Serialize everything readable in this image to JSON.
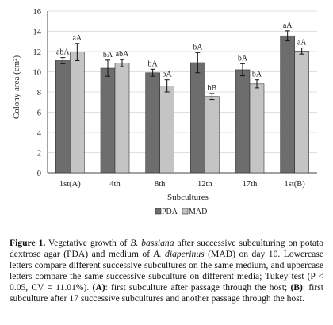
{
  "chart_data": {
    "type": "bar",
    "ylabel": "Colony area (cm²)",
    "xlabel": "Subcultures",
    "ylim": [
      0,
      16
    ],
    "yticks": [
      0,
      2,
      4,
      6,
      8,
      10,
      12,
      14,
      16
    ],
    "categories": [
      "1st(A)",
      "4th",
      "8th",
      "12th",
      "17th",
      "1st(B)"
    ],
    "series": [
      {
        "name": "PDA",
        "color": "#6d6d6d",
        "values": [
          11.1,
          10.35,
          9.9,
          10.9,
          10.2,
          13.55
        ],
        "errors": [
          0.3,
          0.8,
          0.35,
          1.0,
          0.6,
          0.5
        ],
        "labels": [
          "abA",
          "bA",
          "bA",
          "bA",
          "bA",
          "aA"
        ]
      },
      {
        "name": "MAD",
        "color": "#c4c4c4",
        "values": [
          11.95,
          10.85,
          8.6,
          7.55,
          8.8,
          12.05
        ],
        "errors": [
          0.85,
          0.35,
          0.6,
          0.3,
          0.4,
          0.3
        ],
        "labels": [
          "aA",
          "abA",
          "bA",
          "bB",
          "bA",
          "aA"
        ]
      }
    ],
    "legend_position": "bottom-center"
  },
  "caption": {
    "label": "Figure 1.",
    "t1": " Vegetative growth of ",
    "sp1": "B. bassiana",
    "t2": " after successive subculturing on potato dextrose agar (PDA) and medium of ",
    "sp2": "A. diaperinus",
    "t3": " (MAD) on day 10. Lowercase letters compare different successive subcultures on the same medium, and uppercase letters compare the same successive subculture on different media; Tukey test (P < 0.05, CV = 11.01%). ",
    "a_ref": "(A)",
    "t4": ": first subculture after passage through the host; ",
    "b_ref": "(B)",
    "t5": ": first subculture after 17 successive subcultures and another passage through the host."
  }
}
